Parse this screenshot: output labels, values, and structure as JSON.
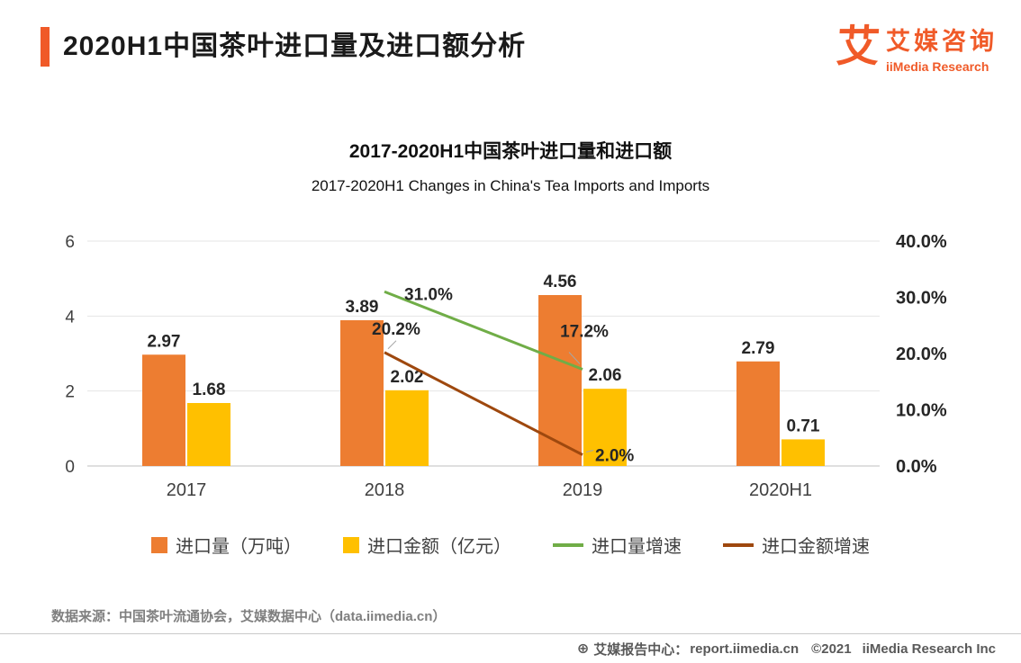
{
  "header": {
    "title": "2020H1中国茶叶进口量及进口额分析",
    "logo_glyph": "艾",
    "logo_cn": "艾媒咨询",
    "logo_en": "iiMedia Research"
  },
  "chart": {
    "title_cn": "2017-2020H1中国茶叶进口量和进口额",
    "title_en": "2017-2020H1 Changes in China's Tea Imports and Imports"
  },
  "chart_data": {
    "type": "combo",
    "categories": [
      "2017",
      "2018",
      "2019",
      "2020H1"
    ],
    "bar_series": [
      {
        "name": "进口量（万吨）",
        "color": "#ED7D31",
        "values": [
          2.97,
          3.89,
          4.56,
          2.79
        ],
        "labels": [
          "2.97",
          "3.89",
          "4.56",
          "2.79"
        ]
      },
      {
        "name": "进口金额（亿元）",
        "color": "#FFC000",
        "values": [
          1.68,
          2.02,
          2.06,
          0.71
        ],
        "labels": [
          "1.68",
          "2.02",
          "2.06",
          "0.71"
        ]
      }
    ],
    "line_series": [
      {
        "name": "进口量增速",
        "color": "#70AD47",
        "values": [
          null,
          31.0,
          17.2,
          null
        ],
        "labels": [
          "",
          "31.0%",
          "17.2%",
          ""
        ]
      },
      {
        "name": "进口金额增速",
        "color": "#9E480E",
        "values": [
          null,
          20.2,
          2.0,
          null
        ],
        "labels": [
          "",
          "20.2%",
          "2.0%",
          ""
        ]
      }
    ],
    "left_axis": {
      "min": 0,
      "max": 6,
      "ticks": [
        0,
        2,
        4,
        6
      ]
    },
    "right_axis": {
      "min": 0,
      "max": 40,
      "ticks": [
        "0.0%",
        "10.0%",
        "20.0%",
        "30.0%",
        "40.0%"
      ]
    },
    "grid": true,
    "legend_position": "bottom"
  },
  "source": "数据来源：中国茶叶流通协会，艾媒数据中心（data.iimedia.cn）",
  "footer": {
    "icon_glyph": "⊕",
    "label": "艾媒报告中心：",
    "url": "report.iimedia.cn",
    "copyright": "©2021",
    "company": "iiMedia Research Inc"
  }
}
